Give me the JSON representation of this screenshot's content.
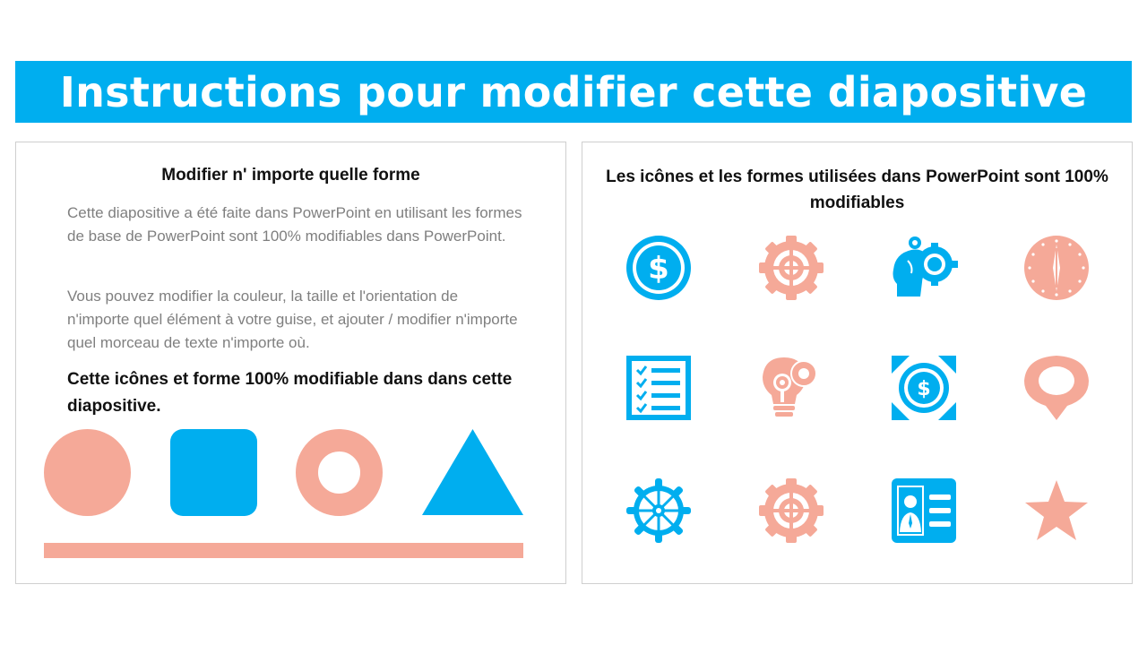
{
  "title": "Instructions pour modifier cette diapositive",
  "left_panel": {
    "heading": "Modifier n' importe quelle forme",
    "paragraph1": "Cette diapositive a été faite dans PowerPoint en utilisant les formes de base de PowerPoint sont 100% modifiables dans PowerPoint.",
    "paragraph2": "Vous pouvez modifier la couleur, la taille et l'orientation de n'importe quel élément à votre guise, et ajouter / modifier n'importe quel morceau de texte n'importe où.",
    "bold_text": "Cette icônes et forme 100% modifiable dans dans cette diapositive.",
    "shapes": [
      "circle",
      "rounded-square",
      "ring",
      "triangle",
      "bar"
    ]
  },
  "right_panel": {
    "heading": "Les icônes et les formes utilisées dans PowerPoint sont 100% modifiables",
    "icons": [
      [
        "dollar-coin-icon",
        "target-gear-icon",
        "head-gears-icon",
        "compass-icon"
      ],
      [
        "checklist-icon",
        "lightbulb-gears-icon",
        "dollar-frame-icon",
        "map-pin-icon"
      ],
      [
        "ship-wheel-icon",
        "target-gear-icon",
        "id-card-icon",
        "star-icon"
      ]
    ]
  },
  "colors": {
    "blue": "#00aeef",
    "salmon": "#f5a998",
    "text_gray": "#7f7f7f"
  }
}
